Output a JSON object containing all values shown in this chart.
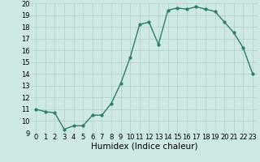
{
  "x": [
    0,
    1,
    2,
    3,
    4,
    5,
    6,
    7,
    8,
    9,
    10,
    11,
    12,
    13,
    14,
    15,
    16,
    17,
    18,
    19,
    20,
    21,
    22,
    23
  ],
  "y": [
    11.0,
    10.8,
    10.7,
    9.3,
    9.6,
    9.6,
    10.5,
    10.5,
    11.5,
    13.2,
    15.4,
    18.2,
    18.4,
    16.5,
    19.4,
    19.6,
    19.5,
    19.7,
    19.5,
    19.3,
    18.4,
    17.5,
    16.2,
    14.0
  ],
  "title": "",
  "xlabel": "Humidex (Indice chaleur)",
  "ylabel": "",
  "xlim": [
    -0.5,
    23.5
  ],
  "ylim": [
    9,
    20
  ],
  "yticks": [
    9,
    10,
    11,
    12,
    13,
    14,
    15,
    16,
    17,
    18,
    19,
    20
  ],
  "xticks": [
    0,
    1,
    2,
    3,
    4,
    5,
    6,
    7,
    8,
    9,
    10,
    11,
    12,
    13,
    14,
    15,
    16,
    17,
    18,
    19,
    20,
    21,
    22,
    23
  ],
  "xtick_labels": [
    "0",
    "1",
    "2",
    "3",
    "4",
    "5",
    "6",
    "7",
    "8",
    "9",
    "10",
    "11",
    "12",
    "13",
    "14",
    "15",
    "16",
    "17",
    "18",
    "19",
    "20",
    "21",
    "22",
    "23"
  ],
  "line_color": "#2e7d6e",
  "marker": "o",
  "marker_size": 2,
  "line_width": 1.0,
  "bg_color": "#cde8e5",
  "grid_color": "#b0cccc",
  "tick_label_fontsize": 6,
  "xlabel_fontsize": 7.5
}
